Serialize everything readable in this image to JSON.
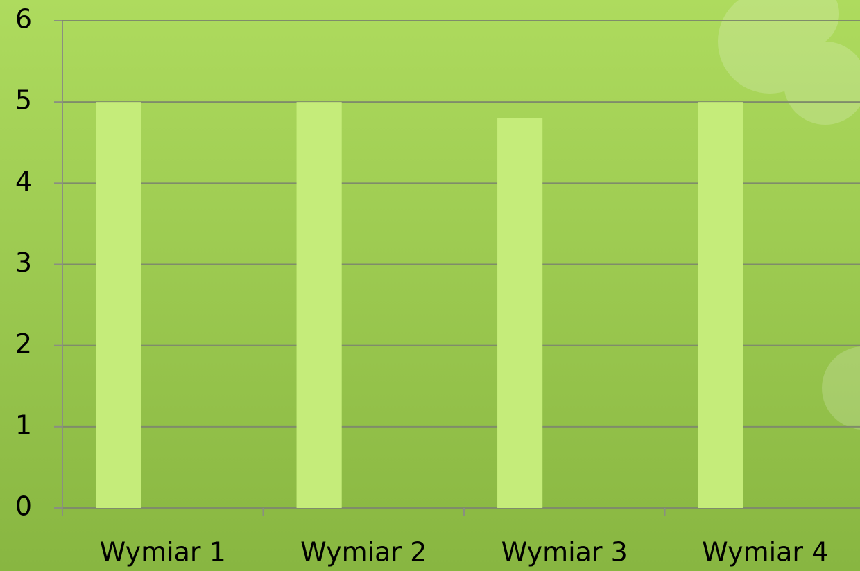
{
  "chart_data": {
    "type": "bar",
    "categories": [
      "Wymiar 1",
      "Wymiar 2",
      "Wymiar 3",
      "Wymiar 4"
    ],
    "values": [
      5,
      5,
      4.8,
      5
    ],
    "color": "#c5ec7a",
    "ylim": [
      0,
      6
    ],
    "yticks": [
      0,
      1,
      2,
      3,
      4,
      5,
      6
    ],
    "grid": true
  }
}
